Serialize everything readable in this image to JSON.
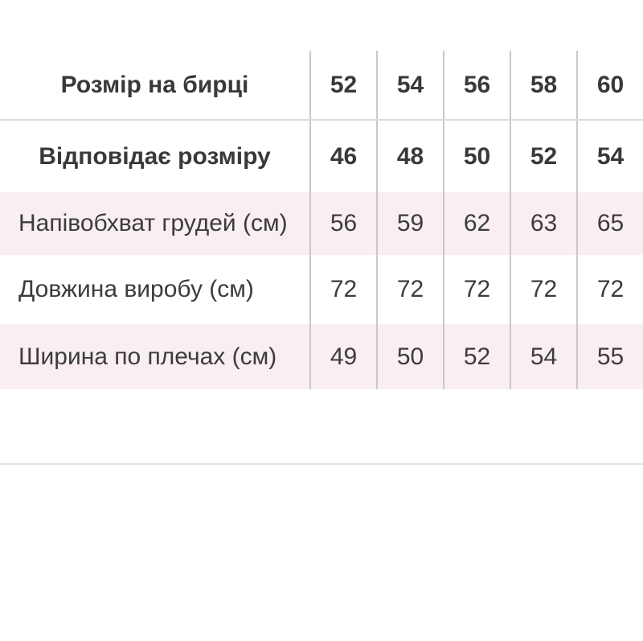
{
  "size_table": {
    "rows": [
      {
        "label": "Розмір на бирці",
        "values": [
          "52",
          "54",
          "56",
          "58",
          "60"
        ],
        "emphasis": "bold-header"
      },
      {
        "label": "Відповідає розміру",
        "values": [
          "46",
          "48",
          "50",
          "52",
          "54"
        ],
        "emphasis": "bold-header"
      },
      {
        "label": "Напівобхват грудей (см)",
        "values": [
          "56",
          "59",
          "62",
          "63",
          "65"
        ],
        "emphasis": "normal"
      },
      {
        "label": "Довжина виробу (см)",
        "values": [
          "72",
          "72",
          "72",
          "72",
          "72"
        ],
        "emphasis": "normal"
      },
      {
        "label": "Ширина по плечах (см)",
        "values": [
          "49",
          "50",
          "52",
          "54",
          "55"
        ],
        "emphasis": "normal"
      }
    ]
  },
  "colors": {
    "row_stripe_pink": "#f9eef1",
    "text": "#3c3c3c",
    "column_separator": "#c9c9c9",
    "header_underline": "#dbdbdb",
    "bottom_divider": "#e2e2e2",
    "background": "#ffffff"
  }
}
